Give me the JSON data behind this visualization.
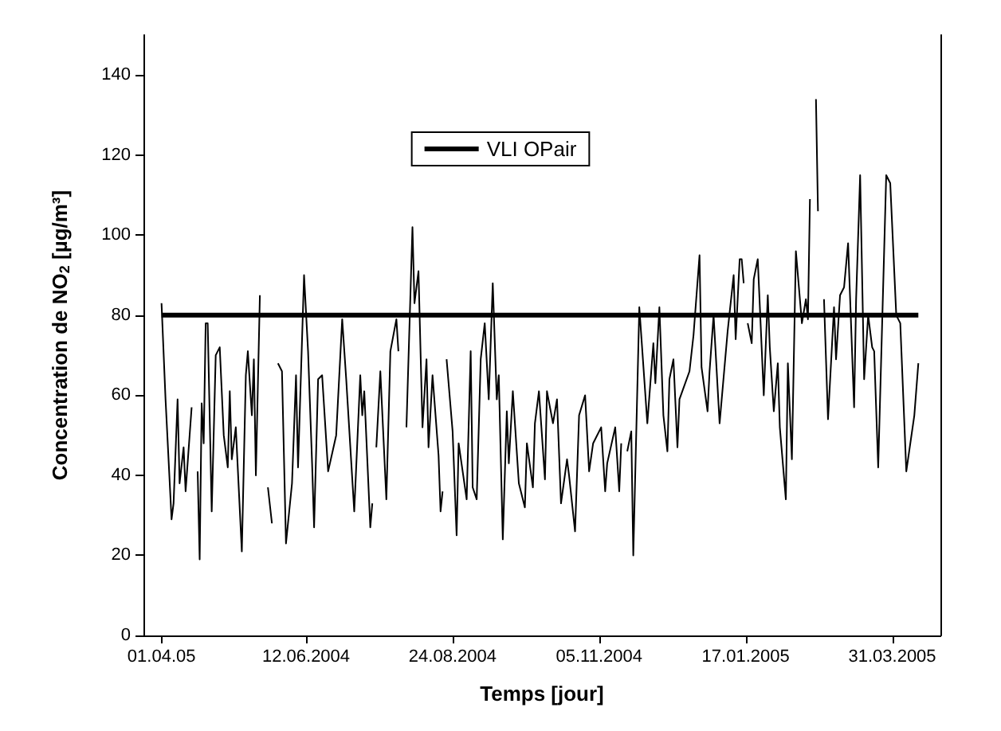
{
  "chart_data": {
    "type": "line",
    "xlabel": "Temps [jour]",
    "ylabel": "Concentration de NO$_{2}$ [µg/m³]",
    "xlim": [
      "2004-03-23",
      "2005-04-24"
    ],
    "xticks": [
      {
        "value": "2004-04-01",
        "label": "01.04.05"
      },
      {
        "value": "2004-06-12",
        "label": "12.06.2004"
      },
      {
        "value": "2004-08-24",
        "label": "24.08.2004"
      },
      {
        "value": "2004-11-05",
        "label": "05.11.2004"
      },
      {
        "value": "2005-01-17",
        "label": "17.01.2005"
      },
      {
        "value": "2005-03-31",
        "label": "31.03.2005"
      }
    ],
    "ylim": [
      0,
      150
    ],
    "yticks": [
      0,
      20,
      40,
      60,
      80,
      100,
      120,
      140
    ],
    "legend": "top",
    "grid": false,
    "ref_lines": [
      {
        "axis": "y",
        "value": 80,
        "label": "VLI OPair",
        "color": "#000000"
      }
    ],
    "series": [
      {
        "color": "#000000",
        "x": [
          "2004-04-01",
          "2004-04-03",
          "2004-04-06",
          "2004-04-07",
          "2004-04-09",
          "2004-04-10",
          "2004-04-12",
          "2004-04-13",
          "2004-04-16",
          "2004-04-17",
          "2004-04-19",
          "2004-04-20",
          "2004-04-21",
          "2004-04-22",
          "2004-04-23",
          "2004-04-24",
          "2004-04-26",
          "2004-04-28",
          "2004-04-30",
          "2004-05-02",
          "2004-05-04",
          "2004-05-05",
          "2004-05-06",
          "2004-05-08",
          "2004-05-11",
          "2004-05-13",
          "2004-05-14",
          "2004-05-16",
          "2004-05-17",
          "2004-05-18",
          "2004-05-20",
          "2004-05-21",
          "2004-05-24",
          "2004-05-26",
          "2004-05-27",
          "2004-05-29",
          "2004-05-31",
          "2004-06-02",
          "2004-06-05",
          "2004-06-07",
          "2004-06-08",
          "2004-06-11",
          "2004-06-13",
          "2004-06-15",
          "2004-06-16",
          "2004-06-18",
          "2004-06-20",
          "2004-06-23",
          "2004-06-27",
          "2004-06-30",
          "2004-07-02",
          "2004-07-06",
          "2004-07-09",
          "2004-07-10",
          "2004-07-11",
          "2004-07-14",
          "2004-07-15",
          "2004-07-16",
          "2004-07-17",
          "2004-07-19",
          "2004-07-22",
          "2004-07-24",
          "2004-07-27",
          "2004-07-28",
          "2004-07-29",
          "2004-08-01",
          "2004-08-04",
          "2004-08-05",
          "2004-08-07",
          "2004-08-09",
          "2004-08-11",
          "2004-08-12",
          "2004-08-14",
          "2004-08-17",
          "2004-08-18",
          "2004-08-19",
          "2004-08-20",
          "2004-08-21",
          "2004-08-24",
          "2004-08-26",
          "2004-08-27",
          "2004-08-31",
          "2004-09-02",
          "2004-09-03",
          "2004-09-05",
          "2004-09-07",
          "2004-09-09",
          "2004-09-11",
          "2004-09-13",
          "2004-09-15",
          "2004-09-16",
          "2004-09-18",
          "2004-09-20",
          "2004-09-21",
          "2004-09-23",
          "2004-09-26",
          "2004-09-29",
          "2004-09-30",
          "2004-10-03",
          "2004-10-04",
          "2004-10-06",
          "2004-10-09",
          "2004-10-10",
          "2004-10-13",
          "2004-10-15",
          "2004-10-17",
          "2004-10-20",
          "2004-10-21",
          "2004-10-24",
          "2004-10-26",
          "2004-10-29",
          "2004-10-31",
          "2004-11-02",
          "2004-11-06",
          "2004-11-08",
          "2004-11-09",
          "2004-11-13",
          "2004-11-15",
          "2004-11-16",
          "2004-11-17",
          "2004-11-19",
          "2004-11-21",
          "2004-11-22",
          "2004-11-25",
          "2004-11-29",
          "2004-12-02",
          "2004-12-03",
          "2004-12-05",
          "2004-12-07",
          "2004-12-09",
          "2004-12-10",
          "2004-12-12",
          "2004-12-14",
          "2004-12-15",
          "2004-12-20",
          "2004-12-22",
          "2004-12-25",
          "2004-12-26",
          "2004-12-29",
          "2004-12-30",
          "2005-01-01",
          "2005-01-04",
          "2005-01-08",
          "2005-01-11",
          "2005-01-12",
          "2005-01-14",
          "2005-01-15",
          "2005-01-16",
          "2005-01-17",
          "2005-01-18",
          "2005-01-20",
          "2005-01-21",
          "2005-01-23",
          "2005-01-26",
          "2005-01-28",
          "2005-01-29",
          "2005-01-31",
          "2005-02-02",
          "2005-02-03",
          "2005-02-06",
          "2005-02-07",
          "2005-02-09",
          "2005-02-11",
          "2005-02-14",
          "2005-02-16",
          "2005-02-17",
          "2005-02-18",
          "2005-02-19",
          "2005-02-21",
          "2005-02-22",
          "2005-02-23",
          "2005-02-25",
          "2005-02-27",
          "2005-03-02",
          "2005-03-03",
          "2005-03-05",
          "2005-03-07",
          "2005-03-09",
          "2005-03-12",
          "2005-03-13",
          "2005-03-15",
          "2005-03-17",
          "2005-03-19",
          "2005-03-21",
          "2005-03-22",
          "2005-03-24",
          "2005-03-28",
          "2005-03-30",
          "2005-04-02",
          "2005-04-04",
          "2005-04-07",
          "2005-04-11",
          "2005-04-13"
        ],
        "values": [
          83,
          59,
          29,
          33,
          59,
          38,
          47,
          36,
          57,
          null,
          41,
          19,
          58,
          48,
          78,
          78,
          31,
          70,
          72,
          50,
          42,
          61,
          44,
          52,
          21,
          65,
          71,
          55,
          69,
          40,
          85,
          null,
          37,
          28,
          null,
          68,
          66,
          23,
          38,
          65,
          42,
          90,
          71,
          43,
          27,
          64,
          65,
          41,
          50,
          79,
          64,
          31,
          65,
          55,
          61,
          27,
          33,
          null,
          47,
          66,
          34,
          71,
          79,
          71,
          null,
          52,
          102,
          83,
          91,
          52,
          69,
          47,
          65,
          45,
          31,
          36,
          null,
          69,
          51,
          25,
          48,
          34,
          71,
          37,
          34,
          69,
          78,
          59,
          88,
          59,
          65,
          24,
          56,
          43,
          61,
          38,
          32,
          48,
          37,
          53,
          61,
          39,
          61,
          53,
          59,
          33,
          44,
          40,
          26,
          55,
          60,
          41,
          48,
          52,
          36,
          43,
          52,
          36,
          48,
          null,
          46,
          51,
          20,
          82,
          53,
          73,
          63,
          82,
          55,
          46,
          64,
          69,
          47,
          59,
          66,
          75,
          95,
          67,
          56,
          66,
          80,
          53,
          76,
          90,
          74,
          94,
          94,
          88,
          null,
          78,
          73,
          89,
          94,
          60,
          85,
          72,
          56,
          68,
          52,
          34,
          68,
          44,
          96,
          78,
          84,
          79,
          109,
          null,
          134,
          106,
          null,
          84,
          54,
          82,
          69,
          85,
          87,
          98,
          57,
          84,
          115,
          64,
          80,
          72,
          71,
          42,
          115,
          113,
          80,
          78,
          41,
          55,
          68
        ]
      }
    ]
  }
}
